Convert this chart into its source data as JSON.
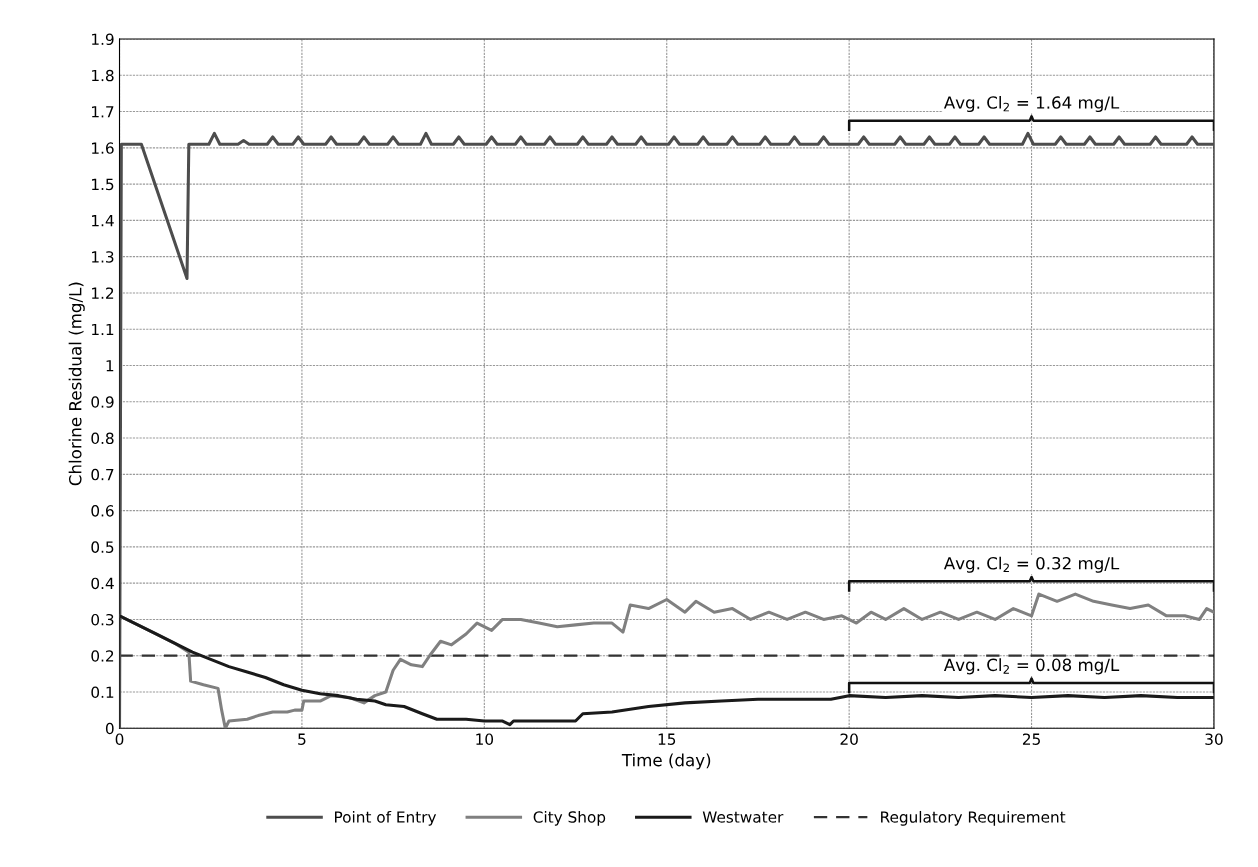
{
  "chart_data": {
    "type": "line",
    "xlabel": "Time (day)",
    "ylabel": "Chlorine Residual (mg/L)",
    "xlim": [
      0,
      30
    ],
    "xticks": [
      0,
      5,
      10,
      15,
      20,
      25,
      30
    ],
    "ylim": [
      0,
      1.9
    ],
    "yticks": [
      0,
      0.1,
      0.2,
      0.3,
      0.4,
      0.5,
      0.6,
      0.7,
      0.8,
      0.9,
      1,
      1.1,
      1.2,
      1.3,
      1.4,
      1.5,
      1.6,
      1.7,
      1.8,
      1.9
    ],
    "grid": true,
    "legend": "bottom",
    "marker": "none",
    "line_style": "solid",
    "series": [
      {
        "name": "Point of Entry",
        "color": "#4d4d4d",
        "x": [
          0,
          0.05,
          0.6,
          1.85,
          1.9,
          2.45,
          2.6,
          2.75,
          3.25,
          3.4,
          3.55,
          4.05,
          4.2,
          4.35,
          4.75,
          4.9,
          5.05,
          5.65,
          5.8,
          5.95,
          6.55,
          6.7,
          6.85,
          7.35,
          7.5,
          7.65,
          8.25,
          8.4,
          8.55,
          9.15,
          9.3,
          9.45,
          10.05,
          10.2,
          10.35,
          10.85,
          11.0,
          11.15,
          11.65,
          11.8,
          11.95,
          12.55,
          12.7,
          12.85,
          13.35,
          13.5,
          13.65,
          14.15,
          14.3,
          14.45,
          15.05,
          15.2,
          15.35,
          15.85,
          16.0,
          16.15,
          16.65,
          16.8,
          16.95,
          17.55,
          17.7,
          17.85,
          18.35,
          18.5,
          18.65,
          19.15,
          19.3,
          19.45,
          20.25,
          20.4,
          20.55,
          21.25,
          21.4,
          21.55,
          22.05,
          22.2,
          22.35,
          22.75,
          22.9,
          23.05,
          23.55,
          23.7,
          23.85,
          24.75,
          24.9,
          25.05,
          25.65,
          25.8,
          25.95,
          26.45,
          26.6,
          26.75,
          27.25,
          27.4,
          27.55,
          28.25,
          28.4,
          28.55,
          29.25,
          29.4,
          29.55,
          30
        ],
        "values": [
          0,
          1.61,
          1.61,
          1.24,
          1.61,
          1.61,
          1.64,
          1.61,
          1.61,
          1.62,
          1.61,
          1.61,
          1.63,
          1.61,
          1.61,
          1.63,
          1.61,
          1.61,
          1.63,
          1.61,
          1.61,
          1.63,
          1.61,
          1.61,
          1.63,
          1.61,
          1.61,
          1.64,
          1.61,
          1.61,
          1.63,
          1.61,
          1.61,
          1.63,
          1.61,
          1.61,
          1.63,
          1.61,
          1.61,
          1.63,
          1.61,
          1.61,
          1.63,
          1.61,
          1.61,
          1.63,
          1.61,
          1.61,
          1.63,
          1.61,
          1.61,
          1.63,
          1.61,
          1.61,
          1.63,
          1.61,
          1.61,
          1.63,
          1.61,
          1.61,
          1.63,
          1.61,
          1.61,
          1.63,
          1.61,
          1.61,
          1.63,
          1.61,
          1.61,
          1.63,
          1.61,
          1.61,
          1.63,
          1.61,
          1.61,
          1.63,
          1.61,
          1.61,
          1.63,
          1.61,
          1.61,
          1.63,
          1.61,
          1.61,
          1.64,
          1.61,
          1.61,
          1.63,
          1.61,
          1.61,
          1.63,
          1.61,
          1.61,
          1.63,
          1.61,
          1.61,
          1.63,
          1.61,
          1.61,
          1.63,
          1.61,
          1.61
        ]
      },
      {
        "name": "City Shop",
        "color": "#808080",
        "x": [
          0,
          0.5,
          1,
          1.5,
          1.9,
          1.95,
          2.3,
          2.7,
          2.8,
          2.9,
          3.0,
          3.5,
          3.8,
          4.2,
          4.6,
          4.8,
          5.0,
          5.05,
          5.5,
          5.8,
          6.3,
          6.7,
          7.0,
          7.3,
          7.5,
          7.7,
          8.0,
          8.3,
          8.5,
          8.8,
          9.1,
          9.5,
          9.8,
          10.2,
          10.5,
          11,
          11.5,
          12,
          12.5,
          13,
          13.5,
          13.8,
          14,
          14.5,
          15,
          15.5,
          15.8,
          16.3,
          16.8,
          17.3,
          17.8,
          18.3,
          18.8,
          19.3,
          19.8,
          20.2,
          20.6,
          21,
          21.5,
          22,
          22.5,
          23,
          23.5,
          24,
          24.5,
          25,
          25.2,
          25.7,
          26.2,
          26.7,
          27.2,
          27.7,
          28.2,
          28.7,
          29.2,
          29.6,
          29.8,
          30
        ],
        "values": [
          0.31,
          0.285,
          0.26,
          0.235,
          0.21,
          0.13,
          0.12,
          0.11,
          0.05,
          0.0,
          0.02,
          0.025,
          0.035,
          0.045,
          0.045,
          0.05,
          0.05,
          0.075,
          0.075,
          0.09,
          0.085,
          0.07,
          0.09,
          0.1,
          0.16,
          0.19,
          0.175,
          0.17,
          0.2,
          0.24,
          0.23,
          0.26,
          0.29,
          0.27,
          0.3,
          0.3,
          0.29,
          0.28,
          0.285,
          0.29,
          0.29,
          0.265,
          0.34,
          0.33,
          0.355,
          0.32,
          0.35,
          0.32,
          0.33,
          0.3,
          0.32,
          0.3,
          0.32,
          0.3,
          0.31,
          0.29,
          0.32,
          0.3,
          0.33,
          0.3,
          0.32,
          0.3,
          0.32,
          0.3,
          0.33,
          0.31,
          0.37,
          0.35,
          0.37,
          0.35,
          0.34,
          0.33,
          0.34,
          0.31,
          0.31,
          0.3,
          0.33,
          0.32
        ]
      },
      {
        "name": "Westwater",
        "color": "#1a1a1a",
        "x": [
          0,
          1,
          2,
          2.5,
          3,
          3.5,
          4,
          4.5,
          5,
          5.5,
          6,
          6.5,
          7,
          7.3,
          7.8,
          8.3,
          8.7,
          9.5,
          10,
          10.5,
          10.7,
          10.8,
          12.5,
          12.7,
          13.5,
          14.5,
          15.5,
          16.5,
          17.5,
          18.5,
          19.5,
          20,
          21,
          22,
          23,
          24,
          25,
          26,
          27,
          28,
          29,
          30
        ],
        "values": [
          0.31,
          0.26,
          0.21,
          0.19,
          0.17,
          0.155,
          0.14,
          0.12,
          0.105,
          0.095,
          0.09,
          0.08,
          0.075,
          0.065,
          0.06,
          0.04,
          0.025,
          0.025,
          0.02,
          0.02,
          0.01,
          0.02,
          0.02,
          0.04,
          0.045,
          0.06,
          0.07,
          0.075,
          0.08,
          0.08,
          0.08,
          0.09,
          0.085,
          0.09,
          0.085,
          0.09,
          0.085,
          0.09,
          0.085,
          0.09,
          0.085,
          0.085
        ]
      }
    ],
    "ref_lines": [
      {
        "axis": "y",
        "value": 0.2,
        "label": "Regulatory Requirement",
        "color": "#333333",
        "line_style": "dashed"
      }
    ],
    "annotations": [
      "Avg. Cl$_{2}$ = 1.64 mg/L",
      "Avg. Cl$_{2}$ = 0.32 mg/L",
      "Avg. Cl$_{2}$ = 0.08 mg/L"
    ]
  }
}
